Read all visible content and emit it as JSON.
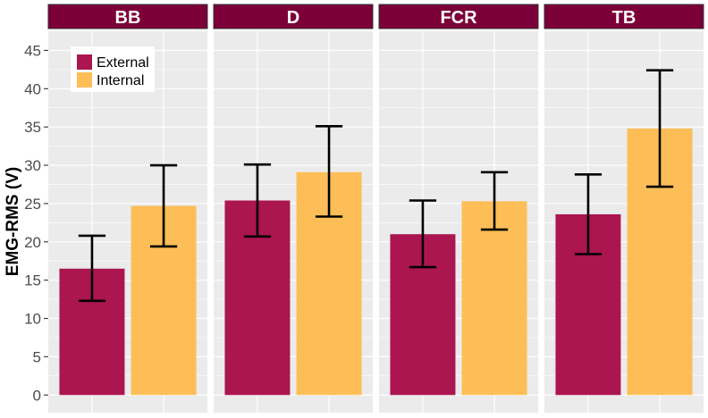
{
  "chart_data": {
    "type": "bar",
    "facets": [
      "BB",
      "D",
      "FCR",
      "TB"
    ],
    "groups": [
      "External",
      "Internal"
    ],
    "series": [
      {
        "name": "External",
        "color": "#AB1550",
        "values": [
          16.5,
          25.4,
          21.0,
          23.6
        ],
        "error_low": [
          12.3,
          20.7,
          16.7,
          18.4
        ],
        "error_high": [
          20.8,
          30.1,
          25.4,
          28.8
        ]
      },
      {
        "name": "Internal",
        "color": "#FDBE58",
        "values": [
          24.7,
          29.1,
          25.3,
          34.8
        ],
        "error_low": [
          19.4,
          23.3,
          21.6,
          27.2
        ],
        "error_high": [
          30.0,
          35.1,
          29.1,
          42.4
        ]
      }
    ],
    "ylabel": "EMG-RMS (V)",
    "ylim": [
      -2.3,
      47.5
    ],
    "yticks": [
      0,
      5,
      10,
      15,
      20,
      25,
      30,
      35,
      40,
      45
    ],
    "grid": true,
    "legend_position": "top-left",
    "strip_color": "#7B0037",
    "panel_color": "#EBEBEB"
  }
}
